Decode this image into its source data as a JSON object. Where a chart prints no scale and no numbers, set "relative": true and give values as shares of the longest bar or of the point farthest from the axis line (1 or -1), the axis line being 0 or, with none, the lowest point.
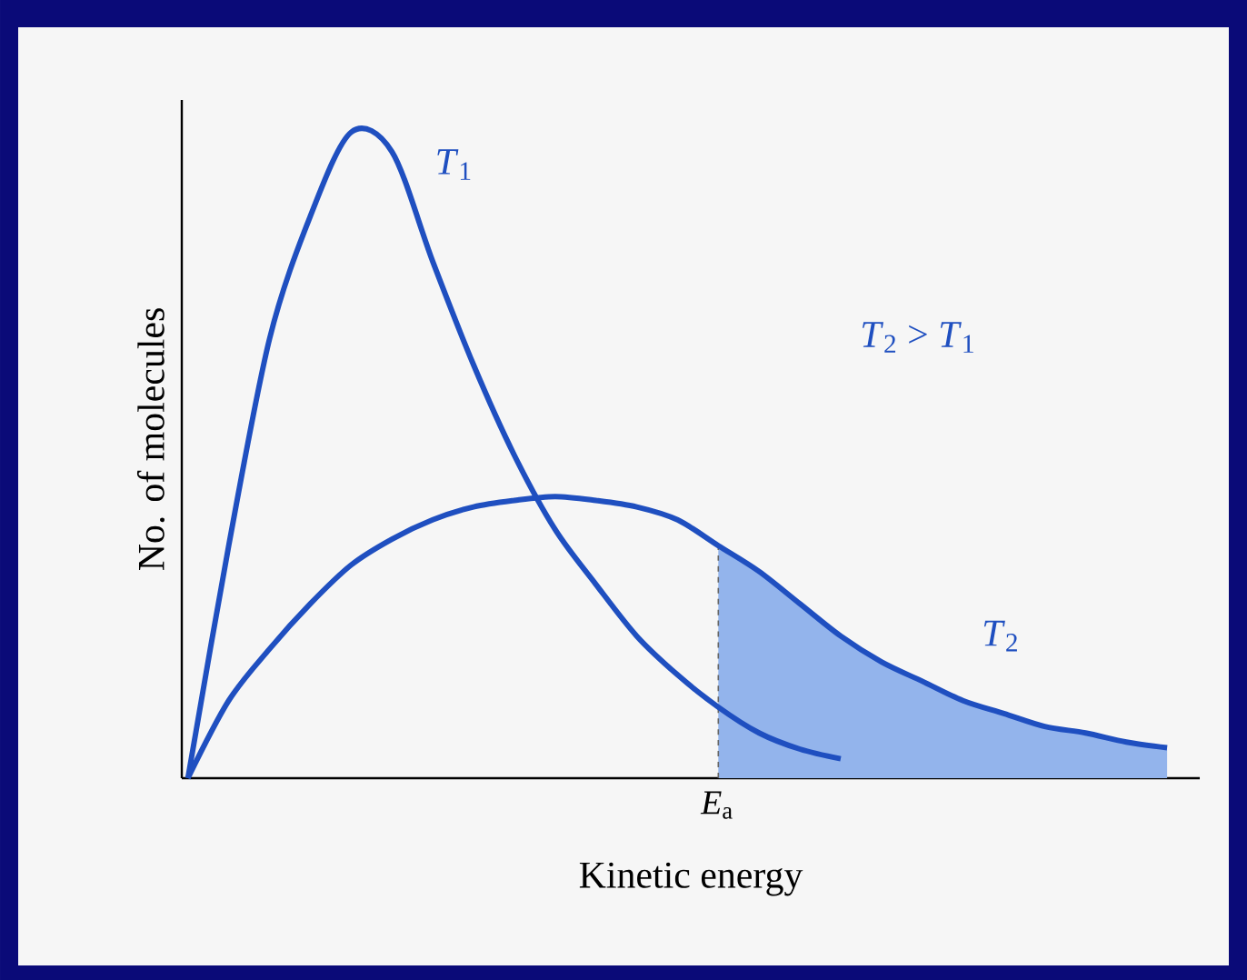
{
  "chart_data": {
    "type": "line",
    "relative": true,
    "xlabel": "Kinetic energy",
    "ylabel": "No. of molecules",
    "categories": [
      null,
      null,
      null,
      null,
      null,
      null,
      null,
      null,
      null,
      null,
      null,
      null,
      null,
      null,
      null,
      null,
      null,
      null,
      null,
      null,
      null,
      null,
      null,
      null,
      null
    ],
    "annotations": [
      "*T*$_{2}$ > *T*$_{1}$",
      "*E*$_{a}$"
    ],
    "series": [
      {
        "name": "*T*$_{1}$",
        "color": "#1f4fc0",
        "values": [
          0,
          0.36,
          0.68,
          0.87,
          1,
          0.97,
          0.8,
          0.64,
          0.5,
          0.385,
          0.3,
          0.22,
          0.16,
          0.11,
          0.07,
          0.045,
          0.03,
          null,
          null,
          null,
          null,
          null,
          null,
          null,
          null
        ]
      },
      {
        "name": "*T*$_{2}$",
        "color": "#1f4fc0",
        "values": [
          0,
          0.12,
          0.2,
          0.27,
          0.33,
          0.37,
          0.4,
          0.42,
          0.43,
          0.436,
          0.43,
          0.42,
          0.4,
          0.36,
          0.32,
          0.27,
          0.22,
          0.18,
          0.15,
          0.12,
          0.1,
          0.08,
          0.07,
          0.056,
          0.047
        ]
      },
      {
        "type": "area",
        "color": "#93b4ec",
        "values": [
          null,
          null,
          null,
          null,
          null,
          null,
          null,
          null,
          null,
          null,
          null,
          null,
          null,
          0.36,
          0.32,
          0.27,
          0.22,
          0.18,
          0.15,
          0.12,
          0.1,
          0.08,
          0.07,
          0.056,
          0.047
        ]
      }
    ]
  }
}
